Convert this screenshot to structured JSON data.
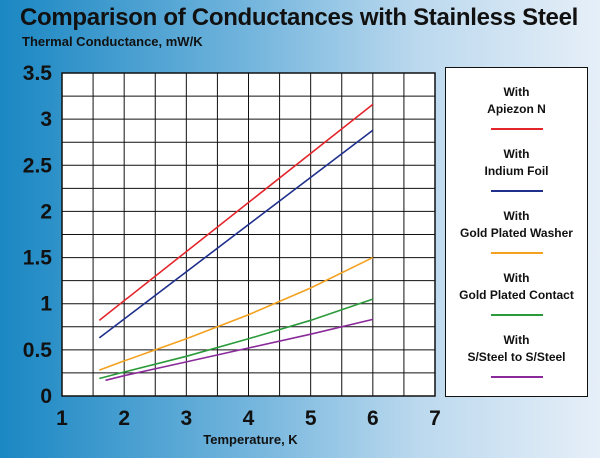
{
  "title": "Comparison of Conductances with Stainless Steel",
  "subtitle": "Thermal Conductance, mW/K",
  "chart_data": {
    "type": "line",
    "title": "Comparison of Conductances with Stainless Steel",
    "ylabel": "Thermal Conductance, mW/K",
    "xlabel": "Temperature, K",
    "xlim": [
      1,
      7
    ],
    "ylim": [
      0,
      3.5
    ],
    "xticks": [
      "1",
      "2",
      "3",
      "4",
      "5",
      "6",
      "7"
    ],
    "yticks": [
      "0",
      "0.5",
      "1",
      "1.5",
      "2",
      "2.5",
      "3",
      "3.5"
    ],
    "grid": true,
    "legend_position": "right",
    "series": [
      {
        "name_line1": "With",
        "name_line2": "Apiezon N",
        "color": "#e3262c",
        "x": [
          1.6,
          6.0
        ],
        "y": [
          0.82,
          3.16
        ]
      },
      {
        "name_line1": "With",
        "name_line2": "Indium Foil",
        "color": "#1f2f8c",
        "x": [
          1.6,
          6.0
        ],
        "y": [
          0.63,
          2.88
        ]
      },
      {
        "name_line1": "With",
        "name_line2": "Gold Plated Washer",
        "color": "#f3a11e",
        "x": [
          1.6,
          2.0,
          3.0,
          4.0,
          5.0,
          6.0
        ],
        "y": [
          0.28,
          0.38,
          0.62,
          0.88,
          1.17,
          1.5
        ]
      },
      {
        "name_line1": "With",
        "name_line2": "Gold Plated Contact",
        "color": "#2a9a3a",
        "x": [
          1.6,
          2.0,
          3.0,
          4.0,
          5.0,
          6.0
        ],
        "y": [
          0.19,
          0.26,
          0.43,
          0.62,
          0.82,
          1.05
        ]
      },
      {
        "name_line1": "With",
        "name_line2": "S/Steel to S/Steel",
        "color": "#8a2a9a",
        "x": [
          1.7,
          2.0,
          3.0,
          4.0,
          5.0,
          6.0
        ],
        "y": [
          0.17,
          0.22,
          0.37,
          0.52,
          0.67,
          0.83
        ]
      }
    ]
  }
}
